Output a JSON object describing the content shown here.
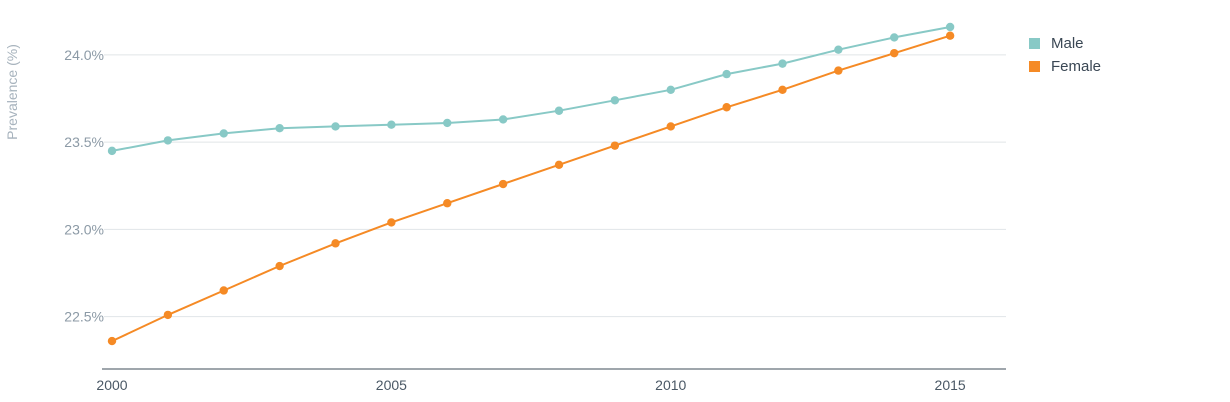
{
  "chart_data": {
    "type": "line",
    "ylabel": "Prevalence (%)",
    "xlabel": "",
    "x": [
      2000,
      2001,
      2002,
      2003,
      2004,
      2005,
      2006,
      2007,
      2008,
      2009,
      2010,
      2011,
      2012,
      2013,
      2014,
      2015
    ],
    "xlim": [
      2000,
      2016
    ],
    "ylim": [
      22.2,
      24.2
    ],
    "x_ticks": [
      2000,
      2005,
      2010,
      2015
    ],
    "x_tick_labels": [
      "2000",
      "2005",
      "2010",
      "2015"
    ],
    "y_ticks": [
      22.5,
      23.0,
      23.5,
      24.0
    ],
    "y_tick_labels": [
      "22.5%",
      "23.0%",
      "23.5%",
      "24.0%"
    ],
    "grid": true,
    "legend_position": "top-right",
    "series": [
      {
        "name": "Male",
        "color": "#88c9c6",
        "values": [
          23.45,
          23.51,
          23.55,
          23.58,
          23.59,
          23.6,
          23.61,
          23.63,
          23.68,
          23.74,
          23.8,
          23.89,
          23.95,
          24.03,
          24.1,
          24.16
        ]
      },
      {
        "name": "Female",
        "color": "#f58a25",
        "values": [
          22.36,
          22.51,
          22.65,
          22.79,
          22.92,
          23.04,
          23.15,
          23.26,
          23.37,
          23.48,
          23.59,
          23.7,
          23.8,
          23.91,
          24.01,
          24.11
        ]
      }
    ]
  }
}
